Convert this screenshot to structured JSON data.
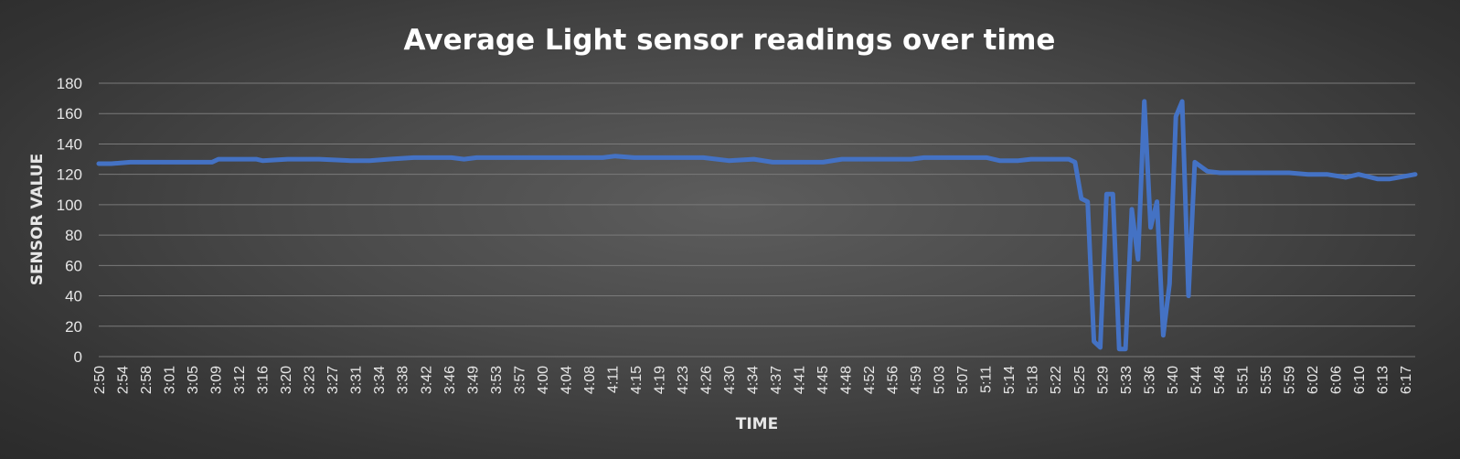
{
  "chart_data": {
    "type": "line",
    "title": "Average Light sensor readings over time",
    "xlabel": "TIME",
    "ylabel": "SENSOR VALUE",
    "ylim": [
      0,
      180
    ],
    "yticks": [
      0,
      20,
      40,
      60,
      80,
      100,
      120,
      140,
      160,
      180
    ],
    "xlim": [
      "2:50",
      "6:19"
    ],
    "xticks": [
      "2:50",
      "2:54",
      "2:58",
      "3:01",
      "3:05",
      "3:09",
      "3:12",
      "3:16",
      "3:20",
      "3:23",
      "3:27",
      "3:31",
      "3:34",
      "3:38",
      "3:42",
      "3:46",
      "3:49",
      "3:53",
      "3:57",
      "4:00",
      "4:04",
      "4:08",
      "4:11",
      "4:15",
      "4:19",
      "4:23",
      "4:26",
      "4:30",
      "4:34",
      "4:37",
      "4:41",
      "4:45",
      "4:48",
      "4:52",
      "4:56",
      "4:59",
      "5:03",
      "5:07",
      "5:11",
      "5:14",
      "5:18",
      "5:22",
      "5:25",
      "5:29",
      "5:33",
      "5:36",
      "5:40",
      "5:44",
      "5:48",
      "5:51",
      "5:55",
      "5:59",
      "6:02",
      "6:06",
      "6:10",
      "6:13",
      "6:17"
    ],
    "grid": true,
    "colors": {
      "line": "#4472c4",
      "grid": "#7a7a7a",
      "text": "#e6e6e6"
    },
    "series": [
      {
        "x": [
          "2:50",
          "2:52",
          "2:55",
          "3:00",
          "3:05",
          "3:08",
          "3:09",
          "3:15",
          "3:16",
          "3:20",
          "3:25",
          "3:30",
          "3:33",
          "3:36",
          "3:40",
          "3:46",
          "3:48",
          "3:50",
          "3:54",
          "3:57",
          "4:00",
          "4:05",
          "4:10",
          "4:12",
          "4:15",
          "4:20",
          "4:26",
          "4:30",
          "4:34",
          "4:37",
          "4:41",
          "4:45",
          "4:48",
          "4:52",
          "4:56",
          "4:59",
          "5:01",
          "5:05",
          "5:11",
          "5:13",
          "5:16",
          "5:18",
          "5:20",
          "5:22",
          "5:24",
          "5:25",
          "5:26",
          "5:27",
          "5:28",
          "5:29",
          "5:30",
          "5:31",
          "5:32",
          "5:33",
          "5:34",
          "5:35",
          "5:36",
          "5:37",
          "5:38",
          "5:39",
          "5:40",
          "5:41",
          "5:42",
          "5:43",
          "5:44",
          "5:46",
          "5:48",
          "5:51",
          "5:55",
          "5:59",
          "6:02",
          "6:05",
          "6:08",
          "6:10",
          "6:13",
          "6:15",
          "6:19"
        ],
        "y": [
          127,
          127,
          128,
          128,
          128,
          128,
          130,
          130,
          129,
          130,
          130,
          129,
          129,
          130,
          131,
          131,
          130,
          131,
          131,
          131,
          131,
          131,
          131,
          132,
          131,
          131,
          131,
          129,
          130,
          128,
          128,
          128,
          130,
          130,
          130,
          130,
          131,
          131,
          131,
          129,
          129,
          130,
          130,
          130,
          130,
          128,
          104,
          102,
          10,
          6,
          107,
          107,
          5,
          5,
          97,
          64,
          168,
          85,
          102,
          14,
          48,
          158,
          168,
          40,
          128,
          122,
          121,
          121,
          121,
          121,
          120,
          120,
          118,
          120,
          117,
          117,
          120
        ]
      }
    ]
  }
}
